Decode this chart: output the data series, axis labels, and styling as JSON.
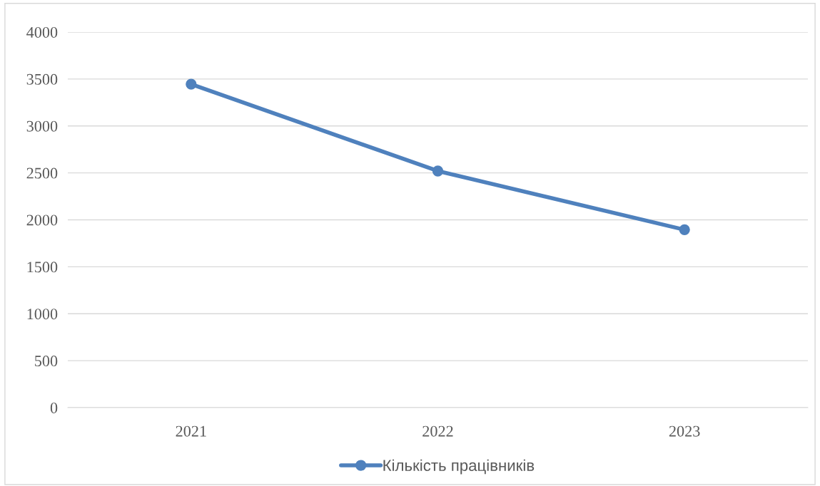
{
  "chart_data": {
    "type": "line",
    "categories": [
      "2021",
      "2022",
      "2023"
    ],
    "series": [
      {
        "name": "Кількість працівників",
        "color": "#4f81bd",
        "values": [
          3445,
          2520,
          1895
        ]
      }
    ],
    "ylim": [
      0,
      4000
    ],
    "yticks": [
      0,
      500,
      1000,
      1500,
      2000,
      2500,
      3000,
      3500,
      4000
    ],
    "grid": "y",
    "legend": "bottom",
    "marker": "circle",
    "line_style": "solid"
  }
}
